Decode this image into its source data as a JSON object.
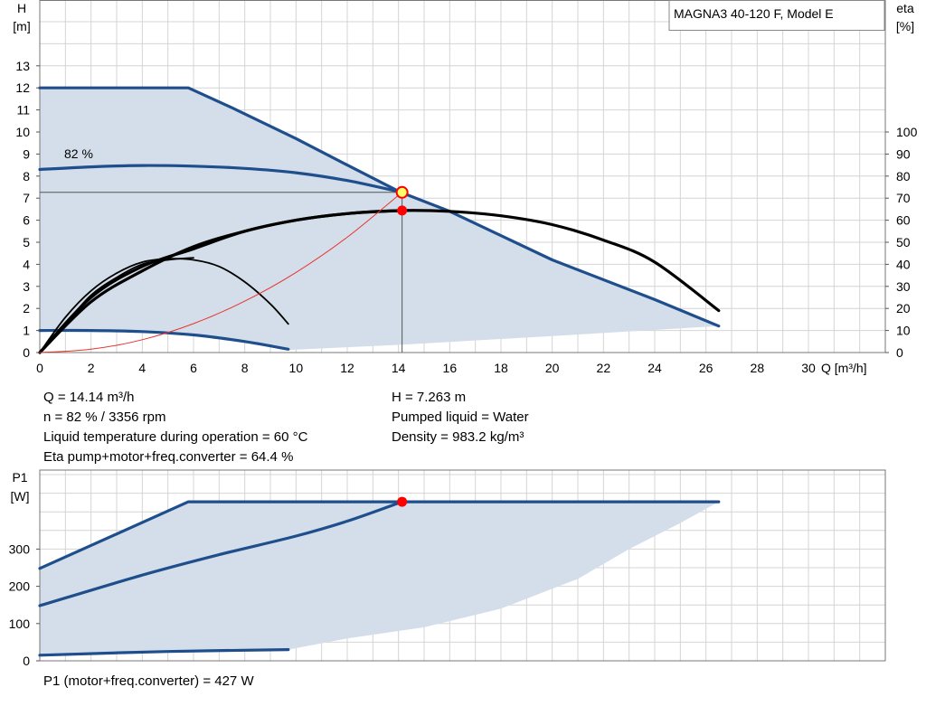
{
  "chart_data": [
    {
      "type": "line",
      "title": "MAGNA3 40-120 F, Model E",
      "xlabel": "Q [m³/h]",
      "ylabel_left_top": "H",
      "ylabel_left_bottom": "[m]",
      "ylabel_right_top": "eta",
      "ylabel_right_bottom": "[%]",
      "xlim": [
        0,
        33
      ],
      "ylim": [
        0,
        14
      ],
      "y2lim": [
        0,
        100
      ],
      "x_ticks": [
        0,
        2,
        4,
        6,
        8,
        10,
        12,
        14,
        16,
        18,
        20,
        22,
        24,
        26,
        28,
        30
      ],
      "y_ticks": [
        0,
        1,
        2,
        3,
        4,
        5,
        6,
        7,
        8,
        9,
        10,
        11,
        12,
        13
      ],
      "y2_ticks": [
        0,
        10,
        20,
        30,
        40,
        50,
        60,
        70,
        80,
        90,
        100
      ],
      "grid": true,
      "curve_label": "82 %",
      "operating_area": {
        "upper": [
          [
            0,
            12
          ],
          [
            5.8,
            12
          ],
          [
            7.5,
            11.1
          ],
          [
            10,
            9.7
          ],
          [
            12,
            8.5
          ],
          [
            14.1,
            7.26
          ],
          [
            16,
            6.4
          ],
          [
            20,
            4.2
          ],
          [
            24,
            2.4
          ],
          [
            26.5,
            1.2
          ]
        ],
        "lower": [
          [
            26.5,
            1.2
          ],
          [
            20,
            0.75
          ],
          [
            14,
            0.35
          ],
          [
            9.7,
            0.12
          ]
        ],
        "min_curve": [
          [
            0,
            1.0
          ],
          [
            2,
            1.0
          ],
          [
            4,
            0.95
          ],
          [
            6,
            0.8
          ],
          [
            8,
            0.5
          ],
          [
            9.7,
            0.15
          ]
        ]
      },
      "series": [
        {
          "role": "max-curve",
          "color": "#1f4e8c",
          "points": [
            [
              0,
              12
            ],
            [
              5.8,
              12
            ],
            [
              7.5,
              11.1
            ],
            [
              10,
              9.7
            ],
            [
              12,
              8.5
            ],
            [
              14.1,
              7.26
            ],
            [
              16,
              6.4
            ],
            [
              20,
              4.2
            ],
            [
              24,
              2.4
            ],
            [
              26.5,
              1.2
            ]
          ]
        },
        {
          "role": "82-curve",
          "color": "#1f4e8c",
          "points": [
            [
              0,
              8.3
            ],
            [
              2,
              8.42
            ],
            [
              4,
              8.48
            ],
            [
              6,
              8.45
            ],
            [
              8,
              8.35
            ],
            [
              10,
              8.15
            ],
            [
              12,
              7.8
            ],
            [
              14.14,
              7.263
            ]
          ]
        },
        {
          "role": "min-curve",
          "color": "#1f4e8c",
          "points": [
            [
              0,
              1.0
            ],
            [
              2,
              1.0
            ],
            [
              4,
              0.95
            ],
            [
              6,
              0.8
            ],
            [
              8,
              0.5
            ],
            [
              9.7,
              0.15
            ]
          ]
        },
        {
          "role": "eta-max",
          "color": "#000000",
          "axis": "right",
          "points": [
            [
              0,
              0
            ],
            [
              2,
              23
            ],
            [
              4,
              37
            ],
            [
              6,
              48
            ],
            [
              8,
              55
            ],
            [
              10,
              60
            ],
            [
              12,
              63
            ],
            [
              14.14,
              64.4
            ],
            [
              16,
              64
            ],
            [
              18,
              62
            ],
            [
              20,
              58
            ],
            [
              22,
              51
            ],
            [
              24,
              41
            ],
            [
              26.5,
              19
            ]
          ]
        },
        {
          "role": "eta-82",
          "color": "#000000",
          "axis": "right",
          "points": [
            [
              0,
              0
            ],
            [
              2,
              25
            ],
            [
              4,
              39
            ],
            [
              6,
              47
            ],
            [
              8,
              55
            ],
            [
              10,
              60
            ],
            [
              12,
              63
            ],
            [
              14.14,
              64.4
            ]
          ]
        },
        {
          "role": "eta-mid",
          "color": "#000000",
          "axis": "right",
          "points": [
            [
              0,
              0
            ],
            [
              1,
              13
            ],
            [
              2,
              26
            ],
            [
              3,
              34
            ],
            [
              4,
              40
            ],
            [
              5,
              42
            ],
            [
              6,
              43
            ]
          ]
        },
        {
          "role": "eta-min",
          "color": "#000000",
          "axis": "right",
          "points": [
            [
              0,
              0
            ],
            [
              1,
              16
            ],
            [
              2,
              28
            ],
            [
              3,
              36
            ],
            [
              4,
              41
            ],
            [
              5,
              42.5
            ],
            [
              6,
              42
            ],
            [
              7,
              39
            ],
            [
              8,
              32
            ],
            [
              9,
              22
            ],
            [
              9.7,
              13
            ]
          ]
        },
        {
          "role": "system-curve",
          "color": "#e8342c",
          "points": [
            [
              0,
              0
            ],
            [
              2,
              0.15
            ],
            [
              4,
              0.58
            ],
            [
              6,
              1.31
            ],
            [
              8,
              2.33
            ],
            [
              10,
              3.63
            ],
            [
              12,
              5.23
            ],
            [
              14.14,
              7.263
            ]
          ]
        }
      ],
      "duty_point": {
        "x": 14.14,
        "y": 7.263
      },
      "eta_point": {
        "x": 14.14,
        "y": 64.4
      }
    },
    {
      "type": "line",
      "ylabel_top": "P1",
      "ylabel_bottom": "[W]",
      "xlim": [
        0,
        33
      ],
      "ylim": [
        0,
        440
      ],
      "y_ticks": [
        0,
        100,
        200,
        300
      ],
      "grid": true,
      "operating_area": {
        "upper": [
          [
            0,
            248
          ],
          [
            5.8,
            427
          ],
          [
            26.5,
            427
          ]
        ],
        "lower": [
          [
            26.5,
            427
          ],
          [
            25,
            370
          ],
          [
            23,
            300
          ],
          [
            21,
            220
          ],
          [
            18,
            140
          ],
          [
            15,
            90
          ],
          [
            12,
            60
          ],
          [
            9.7,
            30
          ]
        ],
        "min_curve": [
          [
            0,
            15
          ],
          [
            9.7,
            30
          ]
        ]
      },
      "series": [
        {
          "role": "max-power",
          "color": "#1f4e8c",
          "points": [
            [
              0,
              248
            ],
            [
              5.8,
              427
            ],
            [
              26.5,
              427
            ]
          ]
        },
        {
          "role": "82-power",
          "color": "#1f4e8c",
          "points": [
            [
              0,
              148
            ],
            [
              4,
              230
            ],
            [
              7,
              285
            ],
            [
              10,
              335
            ],
            [
              12,
              375
            ],
            [
              14.14,
              427
            ]
          ]
        },
        {
          "role": "min-power",
          "color": "#1f4e8c",
          "points": [
            [
              0,
              15
            ],
            [
              5,
              25
            ],
            [
              9.7,
              30
            ]
          ]
        }
      ],
      "duty_point": {
        "x": 14.14,
        "y": 427
      }
    }
  ],
  "info": {
    "left": [
      "Q = 14.14 m³/h",
      "n = 82 % / 3356 rpm",
      "Liquid temperature during operation = 60 °C",
      "Eta pump+motor+freq.converter = 64.4 %"
    ],
    "right": [
      "H = 7.263 m",
      "Pumped liquid = Water",
      "Density = 983.2 kg/m³"
    ],
    "p1": "P1 (motor+freq.converter) = 427 W"
  },
  "colors": {
    "area": "#d3deea",
    "curve": "#1f4e8c",
    "eta": "#000000",
    "system": "#e8342c",
    "point": "#ff0000",
    "grid": "#d4d4d4"
  }
}
